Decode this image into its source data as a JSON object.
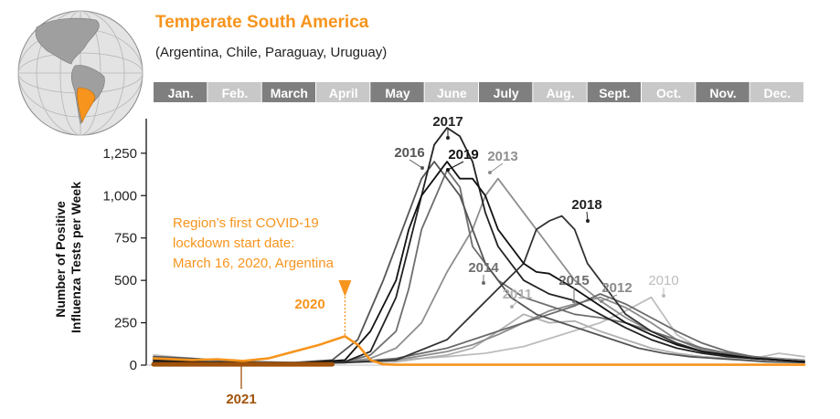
{
  "header": {
    "title": "Temperate South America",
    "subtitle": "(Argentina, Chile, Paraguay, Uruguay)"
  },
  "colors": {
    "accent": "#f7941d",
    "month_dark": "#7f7f7f",
    "month_light": "#c8c8c8",
    "map_ocean": "#e3e3e3",
    "map_land": "#9f9f9f"
  },
  "chart_data": {
    "type": "line",
    "ylabel_lines": [
      "Number of Positive",
      "Influenza Tests per Week"
    ],
    "months": [
      "Jan.",
      "Feb.",
      "March",
      "April",
      "May",
      "June",
      "July",
      "Aug.",
      "Sept.",
      "Oct.",
      "Nov.",
      "Dec."
    ],
    "yticks": [
      0,
      250,
      500,
      750,
      "1,000",
      "1,250"
    ],
    "ylim": [
      0,
      1400
    ],
    "x_unit": "week",
    "xlim": [
      1,
      52
    ],
    "grid": false,
    "series": [
      {
        "name": "2010",
        "color": "#bdbdbd",
        "x": [
          1,
          4,
          8,
          12,
          16,
          20,
          24,
          27,
          30,
          33,
          36,
          38,
          40,
          42,
          44,
          46,
          48,
          50,
          52
        ],
        "y": [
          60,
          40,
          20,
          15,
          20,
          30,
          50,
          70,
          110,
          180,
          250,
          320,
          400,
          180,
          90,
          60,
          40,
          70,
          50
        ]
      },
      {
        "name": "2011",
        "color": "#b0b0b0",
        "x": [
          1,
          4,
          8,
          12,
          16,
          20,
          24,
          26,
          28,
          30,
          32,
          34,
          36,
          38,
          40,
          42,
          44,
          46,
          48,
          50,
          52
        ],
        "y": [
          30,
          20,
          15,
          10,
          15,
          20,
          60,
          100,
          200,
          300,
          250,
          260,
          200,
          150,
          100,
          70,
          50,
          40,
          30,
          20,
          20
        ]
      },
      {
        "name": "2012",
        "color": "#8a8a8a",
        "x": [
          1,
          4,
          8,
          12,
          16,
          20,
          24,
          26,
          28,
          30,
          32,
          34,
          36,
          38,
          40,
          42,
          44,
          46,
          48,
          50,
          52
        ],
        "y": [
          20,
          15,
          10,
          10,
          15,
          30,
          80,
          120,
          180,
          250,
          320,
          360,
          400,
          340,
          250,
          150,
          90,
          60,
          40,
          30,
          20
        ]
      },
      {
        "name": "2013",
        "color": "#8e8e8e",
        "x": [
          1,
          4,
          8,
          12,
          16,
          18,
          20,
          22,
          24,
          26,
          27,
          28,
          30,
          32,
          34,
          36,
          38,
          40,
          42,
          44,
          46,
          48,
          50,
          52
        ],
        "y": [
          40,
          30,
          20,
          15,
          20,
          40,
          100,
          250,
          550,
          800,
          1000,
          1100,
          900,
          700,
          500,
          380,
          280,
          200,
          150,
          100,
          70,
          50,
          40,
          30
        ]
      },
      {
        "name": "2014",
        "color": "#6e6e6e",
        "x": [
          1,
          4,
          8,
          12,
          16,
          18,
          20,
          21,
          22,
          24,
          25,
          26,
          28,
          30,
          32,
          34,
          36,
          38,
          40,
          42,
          44,
          46,
          48,
          50,
          52
        ],
        "y": [
          30,
          20,
          15,
          10,
          20,
          60,
          200,
          450,
          800,
          1150,
          1050,
          700,
          500,
          400,
          350,
          300,
          280,
          250,
          200,
          150,
          100,
          70,
          50,
          30,
          20
        ]
      },
      {
        "name": "2015",
        "color": "#6b6b6b",
        "x": [
          1,
          4,
          8,
          12,
          16,
          20,
          24,
          26,
          28,
          30,
          32,
          34,
          36,
          38,
          40,
          42,
          44,
          46,
          48,
          50,
          52
        ],
        "y": [
          20,
          15,
          10,
          10,
          15,
          40,
          100,
          150,
          200,
          250,
          300,
          350,
          420,
          360,
          280,
          200,
          130,
          80,
          50,
          30,
          20
        ]
      },
      {
        "name": "2016",
        "color": "#555555",
        "x": [
          1,
          4,
          8,
          12,
          15,
          17,
          19,
          21,
          22,
          23,
          25,
          27,
          29,
          31,
          33,
          35,
          37,
          39,
          41,
          43,
          45,
          47,
          49,
          52
        ],
        "y": [
          50,
          40,
          20,
          15,
          30,
          150,
          500,
          900,
          1100,
          1200,
          1000,
          600,
          400,
          300,
          250,
          200,
          150,
          100,
          70,
          50,
          40,
          30,
          20,
          15
        ]
      },
      {
        "name": "2017",
        "color": "#222222",
        "x": [
          1,
          4,
          8,
          12,
          16,
          18,
          20,
          22,
          23,
          24,
          25,
          26,
          27,
          28,
          30,
          32,
          34,
          36,
          38,
          40,
          42,
          44,
          46,
          48,
          50,
          52
        ],
        "y": [
          30,
          20,
          15,
          10,
          20,
          80,
          400,
          1000,
          1300,
          1400,
          1350,
          1200,
          900,
          700,
          500,
          420,
          380,
          300,
          220,
          150,
          100,
          70,
          50,
          40,
          30,
          20
        ]
      },
      {
        "name": "2018",
        "color": "#333333",
        "x": [
          1,
          4,
          8,
          12,
          16,
          20,
          24,
          26,
          28,
          30,
          31,
          32,
          33,
          34,
          35,
          36,
          37,
          38,
          40,
          42,
          44,
          46,
          48,
          50,
          52
        ],
        "y": [
          20,
          15,
          10,
          10,
          15,
          30,
          150,
          300,
          450,
          600,
          800,
          850,
          880,
          800,
          600,
          500,
          400,
          300,
          200,
          130,
          80,
          60,
          40,
          30,
          20
        ]
      },
      {
        "name": "2019",
        "color": "#111111",
        "x": [
          1,
          4,
          8,
          12,
          16,
          18,
          20,
          21,
          22,
          24,
          25,
          26,
          27,
          28,
          29,
          30,
          31,
          32,
          34,
          36,
          38,
          40,
          42,
          44,
          46,
          48,
          50,
          52
        ],
        "y": [
          20,
          15,
          10,
          10,
          30,
          200,
          500,
          800,
          1000,
          1200,
          1100,
          1100,
          1000,
          800,
          700,
          600,
          550,
          540,
          450,
          350,
          250,
          180,
          120,
          80,
          60,
          40,
          30,
          20
        ]
      },
      {
        "name": "2020",
        "color": "#f7941d",
        "x": [
          1,
          4,
          6,
          8,
          10,
          12,
          14,
          16,
          17,
          18,
          19,
          20,
          24,
          28,
          32,
          36,
          40,
          44,
          48,
          52
        ],
        "y": [
          40,
          30,
          35,
          25,
          40,
          80,
          120,
          170,
          120,
          30,
          5,
          2,
          2,
          2,
          2,
          2,
          2,
          2,
          2,
          2
        ]
      },
      {
        "name": "2021",
        "color": "#a0520a",
        "x": [
          1,
          4,
          8,
          12,
          14,
          15
        ],
        "y": [
          5,
          5,
          5,
          5,
          5,
          5
        ]
      }
    ],
    "year_labels": [
      {
        "text": "2017",
        "year": "2017",
        "color": "#222222",
        "bold": true
      },
      {
        "text": "2016",
        "year": "2016",
        "color": "#555555",
        "bold": true
      },
      {
        "text": "2019",
        "year": "2019",
        "color": "#111111",
        "bold": true
      },
      {
        "text": "2013",
        "year": "2013",
        "color": "#8e8e8e",
        "bold": true
      },
      {
        "text": "2018",
        "year": "2018",
        "color": "#222222",
        "bold": true
      },
      {
        "text": "2014",
        "year": "2014",
        "color": "#6e6e6e",
        "bold": true
      },
      {
        "text": "2011",
        "year": "2011",
        "color": "#b0b0b0",
        "bold": true
      },
      {
        "text": "2015",
        "year": "2015",
        "color": "#6b6b6b",
        "bold": true
      },
      {
        "text": "2012",
        "year": "2012",
        "color": "#8a8a8a",
        "bold": true
      },
      {
        "text": "2010",
        "year": "2010",
        "color": "#bdbdbd",
        "bold": false
      },
      {
        "text": "2020",
        "year": "2020",
        "color": "#f7941d",
        "bold": true
      },
      {
        "text": "2021",
        "year": "2021",
        "color": "#a0520a",
        "bold": true
      }
    ],
    "annotation": {
      "lines": [
        "Region’s first COVID-19",
        "lockdown start date:",
        "March 16, 2020, Argentina"
      ],
      "week": 16,
      "color": "#f7941d"
    }
  }
}
